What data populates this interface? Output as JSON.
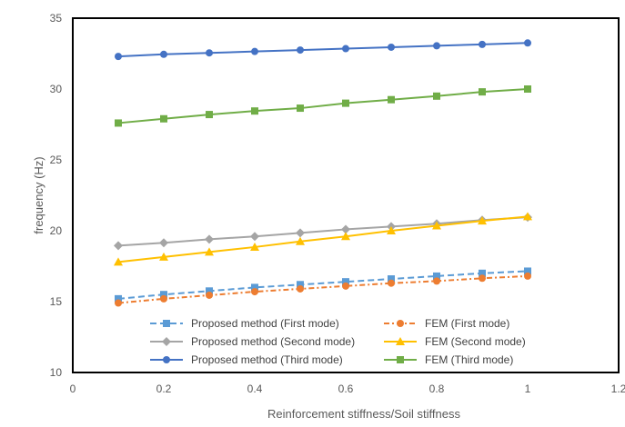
{
  "chart_data": {
    "type": "line",
    "title": "",
    "xlabel": "Reinforcement stiffness/Soil stiffness",
    "ylabel": "frequency (Hz)",
    "xlim": [
      0,
      1.2
    ],
    "ylim": [
      10,
      35
    ],
    "x_ticks": [
      "0",
      "0.2",
      "0.4",
      "0.6",
      "0.8",
      "1",
      "1.2"
    ],
    "y_ticks": [
      "10",
      "15",
      "20",
      "25",
      "30",
      "35"
    ],
    "grid": false,
    "legend_position": "bottom-inside",
    "x": [
      0.1,
      0.2,
      0.3,
      0.4,
      0.5,
      0.6,
      0.7,
      0.8,
      0.9,
      1.0
    ],
    "series": [
      {
        "name": "Proposed method (First mode)",
        "color": "#5B9BD5",
        "marker": "square",
        "line_style": "dashed",
        "values": [
          15.2,
          15.5,
          15.75,
          16.0,
          16.2,
          16.4,
          16.6,
          16.8,
          17.0,
          17.15
        ]
      },
      {
        "name": "FEM (First mode)",
        "color": "#ED7D31",
        "marker": "circle",
        "line_style": "dash-dot",
        "values": [
          14.9,
          15.2,
          15.45,
          15.7,
          15.9,
          16.1,
          16.3,
          16.45,
          16.65,
          16.8
        ]
      },
      {
        "name": "Proposed method (Second mode)",
        "color": "#A5A5A5",
        "marker": "diamond",
        "line_style": "solid",
        "values": [
          18.95,
          19.15,
          19.4,
          19.6,
          19.85,
          20.1,
          20.3,
          20.5,
          20.75,
          20.95
        ]
      },
      {
        "name": "FEM (Second mode)",
        "color": "#FFC000",
        "marker": "triangle",
        "line_style": "solid",
        "values": [
          17.8,
          18.15,
          18.5,
          18.85,
          19.25,
          19.6,
          20.0,
          20.35,
          20.7,
          21.0
        ]
      },
      {
        "name": "Proposed method (Third mode)",
        "color": "#4472C4",
        "marker": "circle",
        "line_style": "solid",
        "values": [
          32.3,
          32.45,
          32.55,
          32.65,
          32.75,
          32.85,
          32.95,
          33.05,
          33.15,
          33.25
        ]
      },
      {
        "name": "FEM (Third mode)",
        "color": "#70AD47",
        "marker": "square",
        "line_style": "solid",
        "values": [
          27.6,
          27.9,
          28.2,
          28.45,
          28.65,
          29.0,
          29.25,
          29.5,
          29.8,
          30.0
        ]
      }
    ]
  }
}
